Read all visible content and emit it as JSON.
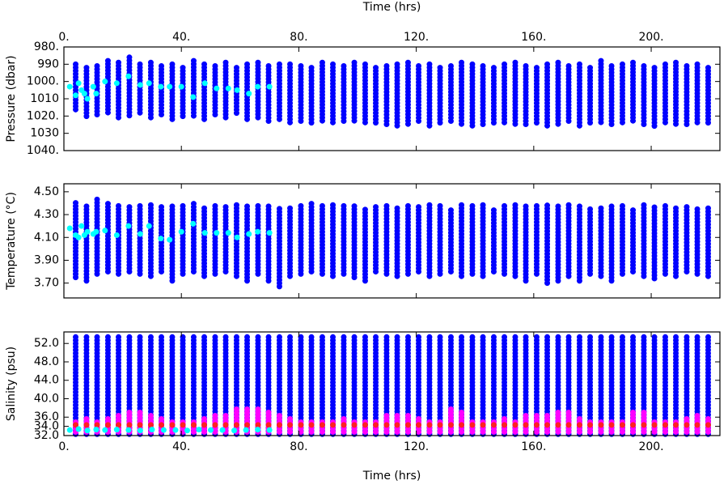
{
  "chart_data": [
    {
      "type": "scatter",
      "xlabel": "Time (hrs)",
      "ylabel": "Pressure (dbar)",
      "xlim": [
        0,
        223.4
      ],
      "xticks": [
        {
          "value": 0,
          "label": "0."
        },
        {
          "value": 40,
          "label": "40."
        },
        {
          "value": 80,
          "label": "80."
        },
        {
          "value": 120,
          "label": "120."
        },
        {
          "value": 160,
          "label": "160."
        },
        {
          "value": 200,
          "label": "200."
        }
      ],
      "ylim": [
        1040,
        980
      ],
      "yticks": [
        {
          "value": 980,
          "label": "980."
        },
        990,
        {
          "value": 1000,
          "label": "1000."
        },
        1010,
        {
          "value": 1020,
          "label": "1020."
        },
        1030,
        {
          "value": 1040,
          "label": "1040."
        }
      ],
      "x": [
        4.0,
        7.7,
        11.3,
        15.0,
        18.6,
        22.3,
        25.9,
        29.6,
        33.2,
        36.9,
        40.5,
        44.2,
        47.8,
        51.5,
        55.1,
        58.8,
        62.4,
        66.1,
        69.7,
        73.4,
        77.0,
        80.7,
        84.3,
        88.0,
        91.6,
        95.3,
        98.9,
        102.6,
        106.2,
        109.9,
        113.5,
        117.2,
        120.8,
        124.5,
        128.1,
        131.8,
        135.4,
        139.1,
        142.7,
        146.4,
        150.0,
        153.7,
        157.3,
        161.0,
        164.6,
        168.3,
        171.9,
        175.6,
        179.2,
        182.9,
        186.5,
        190.2,
        193.8,
        197.5,
        201.1,
        204.8,
        208.4,
        212.1,
        215.7,
        219.4
      ],
      "series": [
        {
          "color": "#0000ff",
          "low": [
            990,
            992,
            991,
            988,
            989,
            986,
            990,
            989,
            991,
            990,
            992,
            988,
            990,
            991,
            989,
            992,
            990,
            989,
            991,
            990,
            990,
            991,
            992,
            989,
            990,
            991,
            989,
            990,
            992,
            991,
            990,
            989,
            991,
            990,
            992,
            991,
            989,
            990,
            991,
            992,
            990,
            989,
            991,
            992,
            990,
            989,
            991,
            990,
            992,
            988,
            991,
            990,
            989,
            991,
            992,
            990,
            989,
            991,
            990,
            992
          ],
          "high": [
            1018,
            1021,
            1020,
            1019,
            1022,
            1020,
            1019,
            1021,
            1020,
            1022,
            1021,
            1020,
            1023,
            1021,
            1022,
            1020,
            1022,
            1021,
            1023,
            1022,
            1024,
            1023,
            1025,
            1024,
            1025,
            1024,
            1023,
            1025,
            1024,
            1025,
            1026,
            1025,
            1024,
            1026,
            1025,
            1024,
            1025,
            1026,
            1025,
            1024,
            1025,
            1026,
            1025,
            1024,
            1026,
            1025,
            1024,
            1026,
            1025,
            1024,
            1026,
            1025,
            1024,
            1025,
            1026,
            1024,
            1025,
            1026,
            1025,
            1024
          ]
        },
        {
          "color": "#00ffff",
          "x": [
            2,
            4,
            5,
            6,
            7,
            8,
            10,
            11,
            14,
            18,
            22,
            26,
            29,
            33,
            36,
            40,
            44,
            48,
            52,
            56,
            59,
            63,
            66,
            70
          ],
          "values": [
            1003,
            1008,
            1001,
            1005,
            1007,
            1010,
            1003,
            1007,
            1000,
            1001,
            997,
            1002,
            1001,
            1003,
            1003,
            1003,
            1009,
            1001,
            1004,
            1004,
            1005,
            1007,
            1003,
            1003
          ]
        }
      ]
    },
    {
      "type": "scatter",
      "ylabel": "Temperature (°C)",
      "xlim": [
        0,
        223.4
      ],
      "xticks": [
        0,
        40,
        80,
        120,
        160,
        200
      ],
      "ylim": [
        3.57,
        4.57
      ],
      "yticks": [
        {
          "value": 3.7,
          "label": "3.70"
        },
        {
          "value": 3.9,
          "label": "3.90"
        },
        {
          "value": 4.1,
          "label": "4.10"
        },
        {
          "value": 4.3,
          "label": "4.30"
        },
        {
          "value": 4.5,
          "label": "4.50"
        }
      ],
      "x": [
        4.0,
        7.7,
        11.3,
        15.0,
        18.6,
        22.3,
        25.9,
        29.6,
        33.2,
        36.9,
        40.5,
        44.2,
        47.8,
        51.5,
        55.1,
        58.8,
        62.4,
        66.1,
        69.7,
        73.4,
        77.0,
        80.7,
        84.3,
        88.0,
        91.6,
        95.3,
        98.9,
        102.6,
        106.2,
        109.9,
        113.5,
        117.2,
        120.8,
        124.5,
        128.1,
        131.8,
        135.4,
        139.1,
        142.7,
        146.4,
        150.0,
        153.7,
        157.3,
        161.0,
        164.6,
        168.3,
        171.9,
        175.6,
        179.2,
        182.9,
        186.5,
        190.2,
        193.8,
        197.5,
        201.1,
        204.8,
        208.4,
        212.1,
        215.7,
        219.4
      ],
      "series": [
        {
          "color": "#0000ff",
          "low": [
            3.75,
            3.72,
            3.78,
            3.8,
            3.78,
            3.8,
            3.78,
            3.76,
            3.8,
            3.72,
            3.78,
            3.8,
            3.76,
            3.78,
            3.8,
            3.76,
            3.72,
            3.78,
            3.72,
            3.67,
            3.76,
            3.78,
            3.8,
            3.78,
            3.76,
            3.78,
            3.75,
            3.72,
            3.8,
            3.78,
            3.76,
            3.78,
            3.8,
            3.76,
            3.78,
            3.8,
            3.76,
            3.78,
            3.76,
            3.8,
            3.78,
            3.76,
            3.72,
            3.78,
            3.7,
            3.72,
            3.76,
            3.72,
            3.78,
            3.76,
            3.72,
            3.78,
            3.8,
            3.76,
            3.74,
            3.78,
            3.76,
            3.8,
            3.78,
            3.76
          ],
          "high": [
            4.42,
            4.4,
            4.45,
            4.4,
            4.4,
            4.38,
            4.4,
            4.4,
            4.38,
            4.4,
            4.38,
            4.4,
            4.38,
            4.4,
            4.38,
            4.4,
            4.38,
            4.38,
            4.38,
            4.36,
            4.38,
            4.4,
            4.42,
            4.38,
            4.4,
            4.38,
            4.4,
            4.36,
            4.38,
            4.4,
            4.38,
            4.4,
            4.38,
            4.4,
            4.38,
            4.36,
            4.4,
            4.38,
            4.4,
            4.36,
            4.38,
            4.4,
            4.38,
            4.4,
            4.4,
            4.38,
            4.4,
            4.38,
            4.36,
            4.38,
            4.4,
            4.38,
            4.36,
            4.4,
            4.38,
            4.4,
            4.36,
            4.38,
            4.36,
            4.36
          ]
        },
        {
          "color": "#00ffff",
          "x": [
            2,
            4,
            5,
            6,
            7,
            8,
            10,
            11,
            14,
            18,
            22,
            26,
            29,
            33,
            36,
            40,
            44,
            48,
            52,
            56,
            59,
            63,
            66,
            70
          ],
          "values": [
            4.18,
            4.12,
            4.1,
            4.2,
            4.12,
            4.15,
            4.13,
            4.15,
            4.16,
            4.12,
            4.2,
            4.13,
            4.2,
            4.09,
            4.08,
            4.15,
            4.22,
            4.14,
            4.14,
            4.14,
            4.1,
            4.13,
            4.15,
            4.14
          ]
        }
      ]
    },
    {
      "type": "scatter",
      "xlabel": "Time (hrs)",
      "ylabel": "Salinity (psu)",
      "xlim": [
        0,
        223.4
      ],
      "xticks": [
        {
          "value": 0,
          "label": "0."
        },
        {
          "value": 40,
          "label": "40."
        },
        {
          "value": 80,
          "label": "80."
        },
        {
          "value": 120,
          "label": "120."
        },
        {
          "value": 160,
          "label": "160."
        },
        {
          "value": 200,
          "label": "200."
        }
      ],
      "ylim": [
        32,
        54.5
      ],
      "yticks": [
        {
          "value": 32,
          "label": "32.0"
        },
        {
          "value": 34,
          "label": "34.0"
        },
        {
          "value": 36,
          "label": "36.0"
        },
        {
          "value": 40,
          "label": "40.0"
        },
        {
          "value": 44,
          "label": "44.0"
        },
        {
          "value": 48,
          "label": "48.0"
        },
        {
          "value": 52,
          "label": "52.0"
        }
      ],
      "x": [
        4.0,
        7.7,
        11.3,
        15.0,
        18.6,
        22.3,
        25.9,
        29.6,
        33.2,
        36.9,
        40.5,
        44.2,
        47.8,
        51.5,
        55.1,
        58.8,
        62.4,
        66.1,
        69.7,
        73.4,
        77.0,
        80.7,
        84.3,
        88.0,
        91.6,
        95.3,
        98.9,
        102.6,
        106.2,
        109.9,
        113.5,
        117.2,
        120.8,
        124.5,
        128.1,
        131.8,
        135.4,
        139.1,
        142.7,
        146.4,
        150.0,
        153.7,
        157.3,
        161.0,
        164.6,
        168.3,
        171.9,
        175.6,
        179.2,
        182.9,
        186.5,
        190.2,
        193.8,
        197.5,
        201.1,
        204.8,
        208.4,
        212.1,
        215.7,
        219.4
      ],
      "series": [
        {
          "color": "#0000ff",
          "low": [
            32.3,
            32.3,
            32.3,
            32.3,
            32.3,
            32.3,
            32.3,
            32.3,
            32.3,
            32.3,
            32.3,
            32.3,
            32.3,
            32.3,
            32.3,
            32.3,
            32.3,
            32.3,
            32.3,
            32.3,
            32.3,
            32.3,
            32.3,
            32.3,
            32.3,
            32.3,
            32.3,
            32.3,
            32.3,
            32.3,
            32.3,
            32.3,
            32.3,
            32.3,
            32.3,
            32.3,
            32.3,
            32.3,
            32.3,
            32.3,
            32.3,
            32.3,
            32.3,
            32.3,
            32.3,
            32.3,
            32.3,
            32.3,
            32.3,
            32.3,
            32.3,
            32.3,
            32.3,
            32.3,
            32.3,
            32.3,
            32.3,
            32.3,
            32.3,
            32.3
          ],
          "high": [
            53.8,
            53.8,
            53.8,
            53.8,
            53.8,
            53.8,
            53.8,
            53.8,
            53.8,
            53.8,
            53.8,
            53.8,
            53.8,
            53.8,
            53.8,
            53.8,
            53.8,
            53.8,
            53.8,
            53.8,
            53.8,
            53.8,
            53.8,
            53.8,
            53.8,
            53.8,
            53.8,
            53.8,
            53.8,
            53.8,
            53.8,
            53.8,
            53.8,
            53.8,
            53.8,
            53.8,
            53.8,
            53.8,
            53.8,
            53.8,
            53.8,
            53.8,
            53.8,
            53.8,
            53.8,
            53.8,
            53.8,
            53.8,
            53.8,
            53.8,
            53.8,
            53.8,
            53.8,
            53.8,
            53.8,
            53.8,
            53.8,
            53.8,
            53.8,
            53.8
          ]
        },
        {
          "color": "#ff00ff",
          "low": [
            32.8,
            32.8,
            32.8,
            32.8,
            32.8,
            32.8,
            32.8,
            32.8,
            32.8,
            32.8,
            32.8,
            32.8,
            32.8,
            32.8,
            32.8,
            32.8,
            32.8,
            32.8,
            32.8,
            32.8,
            32.8,
            32.8,
            32.8,
            32.8,
            32.8,
            32.8,
            32.8,
            32.8,
            32.8,
            32.8,
            32.8,
            32.8,
            32.8,
            32.8,
            32.8,
            32.8,
            32.8,
            32.8,
            32.8,
            32.8,
            32.8,
            32.8,
            32.8,
            32.8,
            32.8,
            32.8,
            32.8,
            32.8,
            32.8,
            32.8,
            32.8,
            32.8,
            32.8,
            32.8,
            32.8,
            32.8,
            32.8,
            32.8,
            32.8,
            32.8
          ],
          "high": [
            35.5,
            36,
            35.5,
            36,
            36.5,
            37.5,
            37.5,
            37,
            36,
            35.5,
            35.5,
            35.5,
            36,
            36.5,
            37,
            38,
            38,
            38,
            37.5,
            37,
            36,
            35.5,
            35.5,
            35,
            35.5,
            36,
            35.5,
            35.5,
            35.5,
            36.5,
            37,
            37,
            36,
            35.5,
            35.5,
            38,
            37.5,
            35.5,
            35.5,
            35.5,
            36,
            35.5,
            36.5,
            37,
            36.5,
            37.5,
            37.5,
            36,
            35.5,
            35.5,
            35.5,
            35.5,
            37.5,
            37.5,
            35.5,
            35.5,
            35.5,
            36,
            36.5,
            36
          ]
        },
        {
          "color": "#ff2020",
          "low": [
            34.3,
            34.3,
            34.3,
            34.3,
            34.3,
            34.3,
            34.3,
            34.3,
            34.3,
            34.3,
            34.3,
            34.3,
            34.3,
            34.3,
            34.3,
            34.3,
            34.3,
            34.3,
            34.3,
            34.3,
            34.3,
            34.3,
            34.3,
            34.3,
            34.3,
            34.3,
            34.3,
            34.3,
            34.3,
            34.3,
            34.3,
            34.3,
            34.3,
            34.3,
            34.3,
            34.3,
            34.3,
            34.3,
            34.3,
            34.3,
            34.3,
            34.3,
            34.3,
            34.3,
            34.3,
            34.3,
            34.3,
            34.3,
            34.3,
            34.3,
            34.3,
            34.3,
            34.3,
            34.3,
            34.3,
            34.3,
            34.3,
            34.3,
            34.3,
            34.3
          ],
          "high": [
            35.0,
            35.0,
            35.0,
            35.0,
            35.0,
            35.0,
            35.0,
            35.0,
            35.0,
            35.0,
            35.0,
            35.0,
            35.0,
            35.0,
            35.0,
            35.0,
            35.0,
            35.0,
            35.0,
            35.0,
            35.0,
            35.0,
            35.0,
            35.0,
            35.0,
            35.0,
            35.0,
            35.0,
            35.0,
            35.0,
            35.0,
            35.0,
            35.0,
            35.0,
            35.0,
            35.0,
            35.0,
            35.0,
            35.0,
            35.0,
            35.0,
            35.0,
            35.0,
            35.0,
            35.0,
            35.0,
            35.0,
            35.0,
            35.0,
            35.0,
            35.0,
            35.0,
            35.0,
            35.0,
            35.0,
            35.0,
            35.0,
            35.0,
            35.0,
            35.0
          ]
        },
        {
          "color": "#00ffff",
          "x": [
            2,
            5,
            8,
            11,
            14,
            18,
            22,
            26,
            30,
            34,
            38,
            42,
            46,
            50,
            54,
            58,
            62,
            66,
            70
          ],
          "values": [
            33.2,
            33.4,
            33.1,
            33.3,
            33.2,
            33.3,
            33.2,
            33.1,
            33.3,
            33.2,
            33.2,
            33.1,
            33.3,
            33.2,
            33.2,
            33.1,
            33.2,
            33.3,
            33.2
          ]
        }
      ]
    }
  ]
}
